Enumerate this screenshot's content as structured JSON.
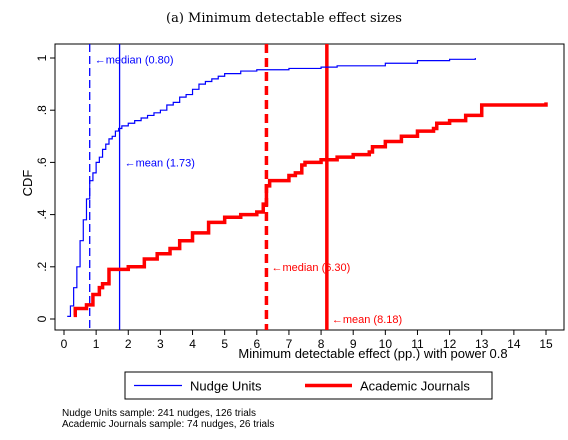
{
  "chart_data": {
    "type": "line",
    "title": "(a) Minimum detectable effect sizes",
    "xlabel": "Minimum detectable effect (pp.) with power 0.8",
    "ylabel": "CDF",
    "xlim": [
      0,
      15
    ],
    "ylim": [
      0,
      1
    ],
    "x_ticks": [
      "0",
      "1",
      "2",
      "3",
      "4",
      "5",
      "6",
      "7",
      "8",
      "9",
      "10",
      "11",
      "12",
      "13",
      "14",
      "15"
    ],
    "y_ticks": [
      "0",
      ".2",
      ".4",
      ".6",
      ".8",
      "1"
    ],
    "grid": false,
    "legend_position": "bottom",
    "series": [
      {
        "name": "Nudge Units",
        "color": "#0000ff",
        "x": [
          0.1,
          0.2,
          0.3,
          0.4,
          0.5,
          0.6,
          0.7,
          0.8,
          0.9,
          1.0,
          1.1,
          1.2,
          1.3,
          1.4,
          1.5,
          1.6,
          1.7,
          1.8,
          2.0,
          2.2,
          2.4,
          2.6,
          2.8,
          3.0,
          3.2,
          3.4,
          3.6,
          3.8,
          4.0,
          4.2,
          4.4,
          4.6,
          4.8,
          5.0,
          5.5,
          6.0,
          7.0,
          8.0,
          8.5,
          10.0,
          11.0,
          12.0,
          12.8
        ],
        "y": [
          0.01,
          0.05,
          0.12,
          0.2,
          0.3,
          0.38,
          0.46,
          0.53,
          0.56,
          0.6,
          0.62,
          0.65,
          0.67,
          0.69,
          0.7,
          0.72,
          0.73,
          0.74,
          0.75,
          0.76,
          0.77,
          0.78,
          0.79,
          0.8,
          0.82,
          0.83,
          0.85,
          0.86,
          0.88,
          0.9,
          0.91,
          0.92,
          0.93,
          0.94,
          0.95,
          0.955,
          0.96,
          0.965,
          0.97,
          0.98,
          0.99,
          0.995,
          1.0
        ]
      },
      {
        "name": "Academic Journals",
        "color": "#ff0000",
        "x": [
          0.3,
          0.35,
          0.4,
          0.7,
          0.8,
          0.9,
          1.0,
          1.1,
          1.2,
          1.3,
          1.4,
          2.0,
          2.4,
          2.5,
          2.9,
          3.3,
          3.5,
          3.6,
          4.0,
          4.5,
          5.0,
          5.5,
          6.0,
          6.2,
          6.3,
          6.4,
          7.0,
          7.2,
          7.4,
          7.5,
          8.0,
          8.2,
          8.5,
          9.0,
          9.5,
          9.6,
          10.0,
          10.5,
          11.0,
          11.5,
          11.6,
          12.0,
          12.5,
          13.0,
          15.0
        ],
        "y": [
          0.014,
          0.04,
          0.04,
          0.054,
          0.054,
          0.094,
          0.094,
          0.12,
          0.135,
          0.135,
          0.19,
          0.2,
          0.2,
          0.23,
          0.25,
          0.27,
          0.27,
          0.3,
          0.33,
          0.37,
          0.39,
          0.4,
          0.41,
          0.44,
          0.51,
          0.53,
          0.55,
          0.56,
          0.59,
          0.6,
          0.61,
          0.61,
          0.62,
          0.63,
          0.64,
          0.66,
          0.68,
          0.7,
          0.72,
          0.73,
          0.75,
          0.76,
          0.78,
          0.82,
          0.83
        ]
      }
    ],
    "reference_lines": [
      {
        "series": "Nudge Units",
        "stat": "median",
        "x": 0.8,
        "style": "dashed",
        "label": "←median (0.80)",
        "label_y": 0.995
      },
      {
        "series": "Nudge Units",
        "stat": "mean",
        "x": 1.73,
        "style": "solid",
        "label": "←mean (1.73)",
        "label_y": 0.6
      },
      {
        "series": "Academic Journals",
        "stat": "median",
        "x": 6.3,
        "style": "dashed",
        "label": "←median (6.30)",
        "label_y": 0.2
      },
      {
        "series": "Academic Journals",
        "stat": "mean",
        "x": 8.18,
        "style": "solid",
        "label": "←mean (8.18)",
        "label_y": 0.0
      }
    ],
    "notes": [
      "Nudge Units sample: 241 nudges, 126 trials",
      "Academic Journals sample: 74 nudges, 26 trials"
    ]
  }
}
